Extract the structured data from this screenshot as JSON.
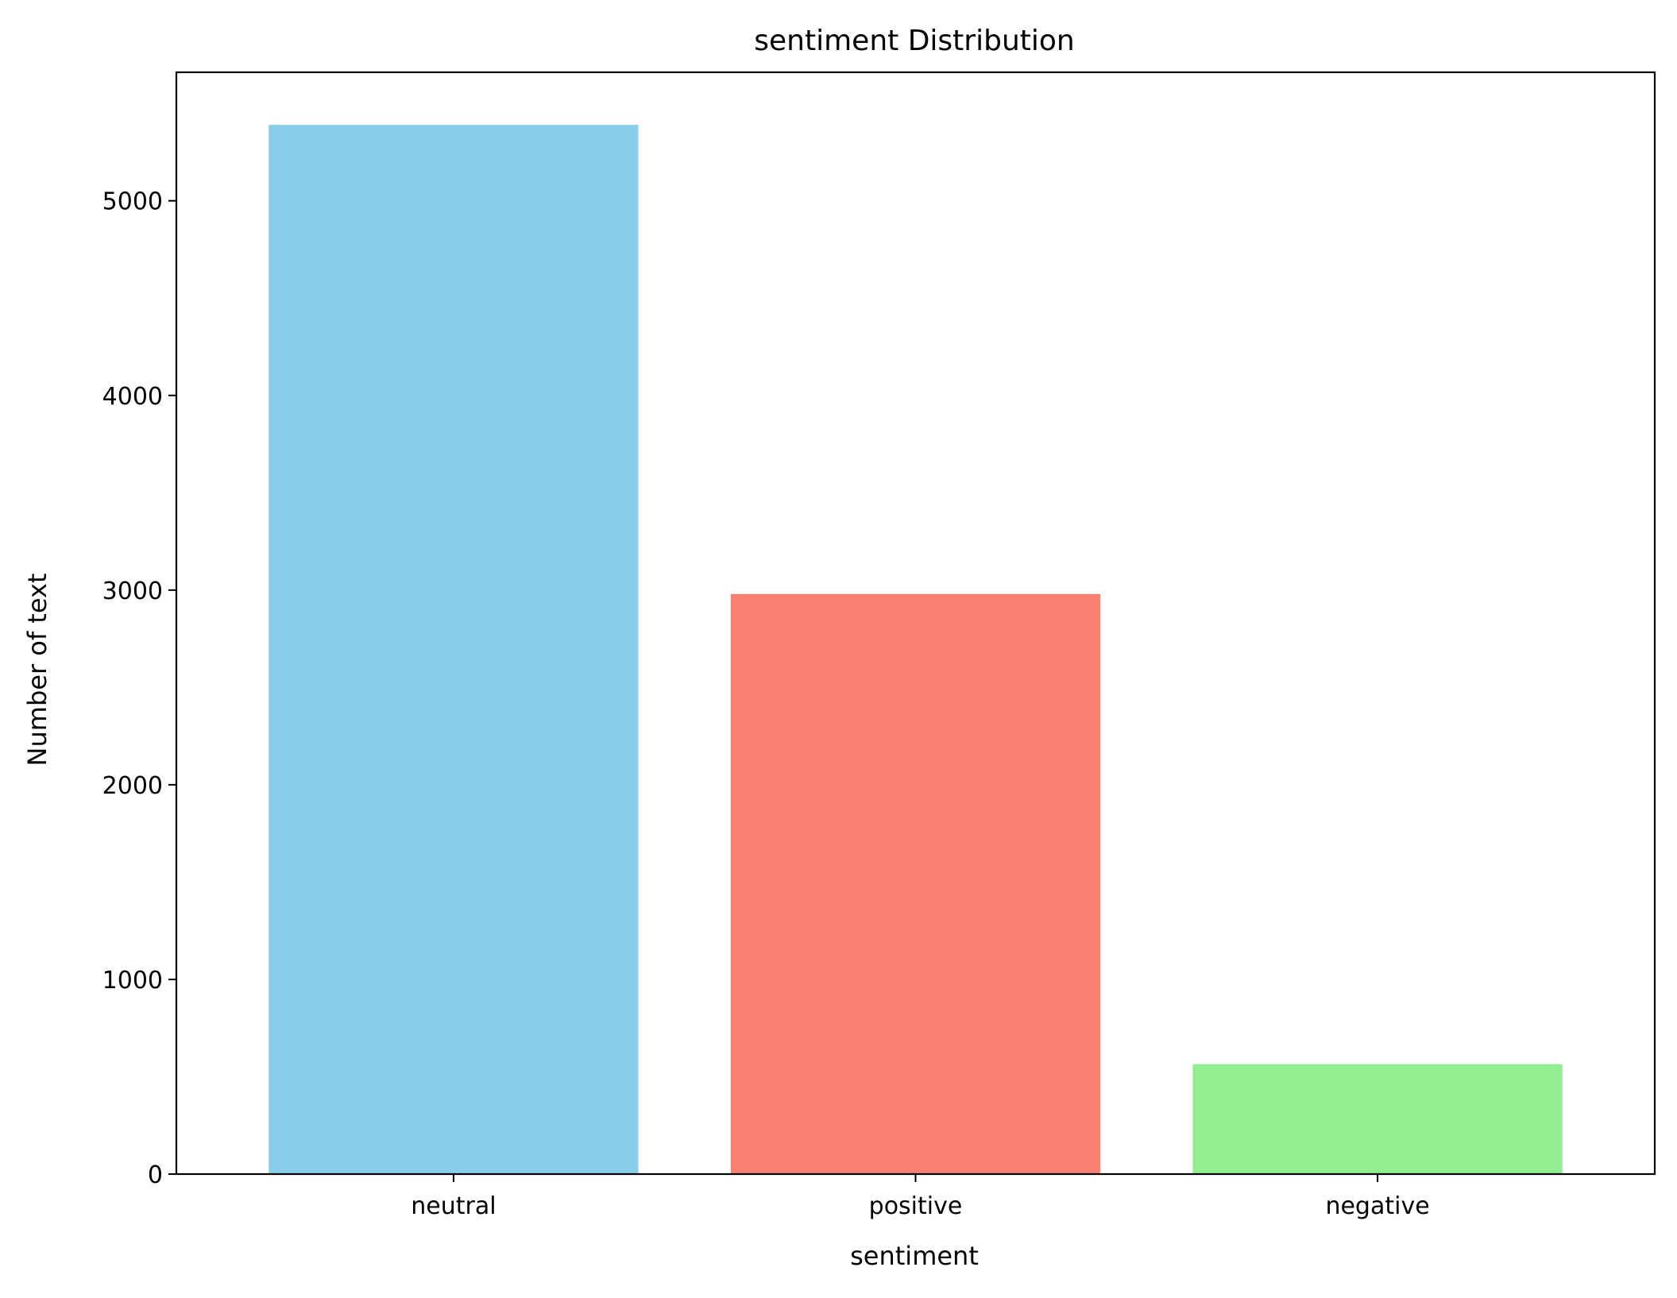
{
  "chart_data": {
    "type": "bar",
    "title": "sentiment Distribution",
    "xlabel": "sentiment",
    "ylabel": "Number of text",
    "categories": [
      "neutral",
      "positive",
      "negative"
    ],
    "values": [
      5390,
      2980,
      565
    ],
    "colors": [
      "#87ceeb",
      "#fa8072",
      "#90ee90"
    ],
    "ylim": [
      0,
      5660
    ],
    "yticks": [
      0,
      1000,
      2000,
      3000,
      4000,
      5000
    ],
    "ytick_labels": [
      "0",
      "1000",
      "2000",
      "3000",
      "4000",
      "5000"
    ],
    "grid": false,
    "legend": false
  }
}
